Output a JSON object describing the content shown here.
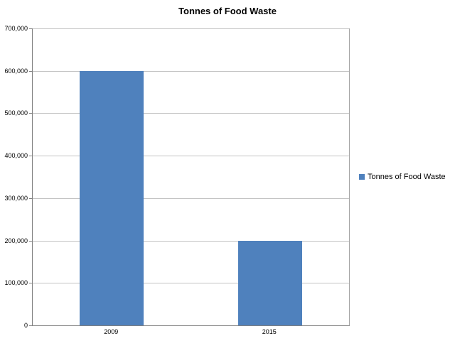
{
  "chart_data": {
    "type": "bar",
    "title": "Tonnes of Food Waste",
    "categories": [
      "2009",
      "2015"
    ],
    "series": [
      {
        "name": "Tonnes of Food Waste",
        "values": [
          600000,
          200000
        ]
      }
    ],
    "ylim": [
      0,
      700000
    ],
    "ytick_step": 100000,
    "ytick_labels": [
      "0",
      "100,000",
      "200,000",
      "300,000",
      "400,000",
      "500,000",
      "600,000",
      "700,000"
    ],
    "grid": true,
    "legend": {
      "position": "right",
      "label": "Tonnes of Food Waste"
    },
    "colors": {
      "bar": "#4F81BD",
      "gridline": "#C3C3C3",
      "axis": "#808080",
      "text": "#000000"
    }
  }
}
